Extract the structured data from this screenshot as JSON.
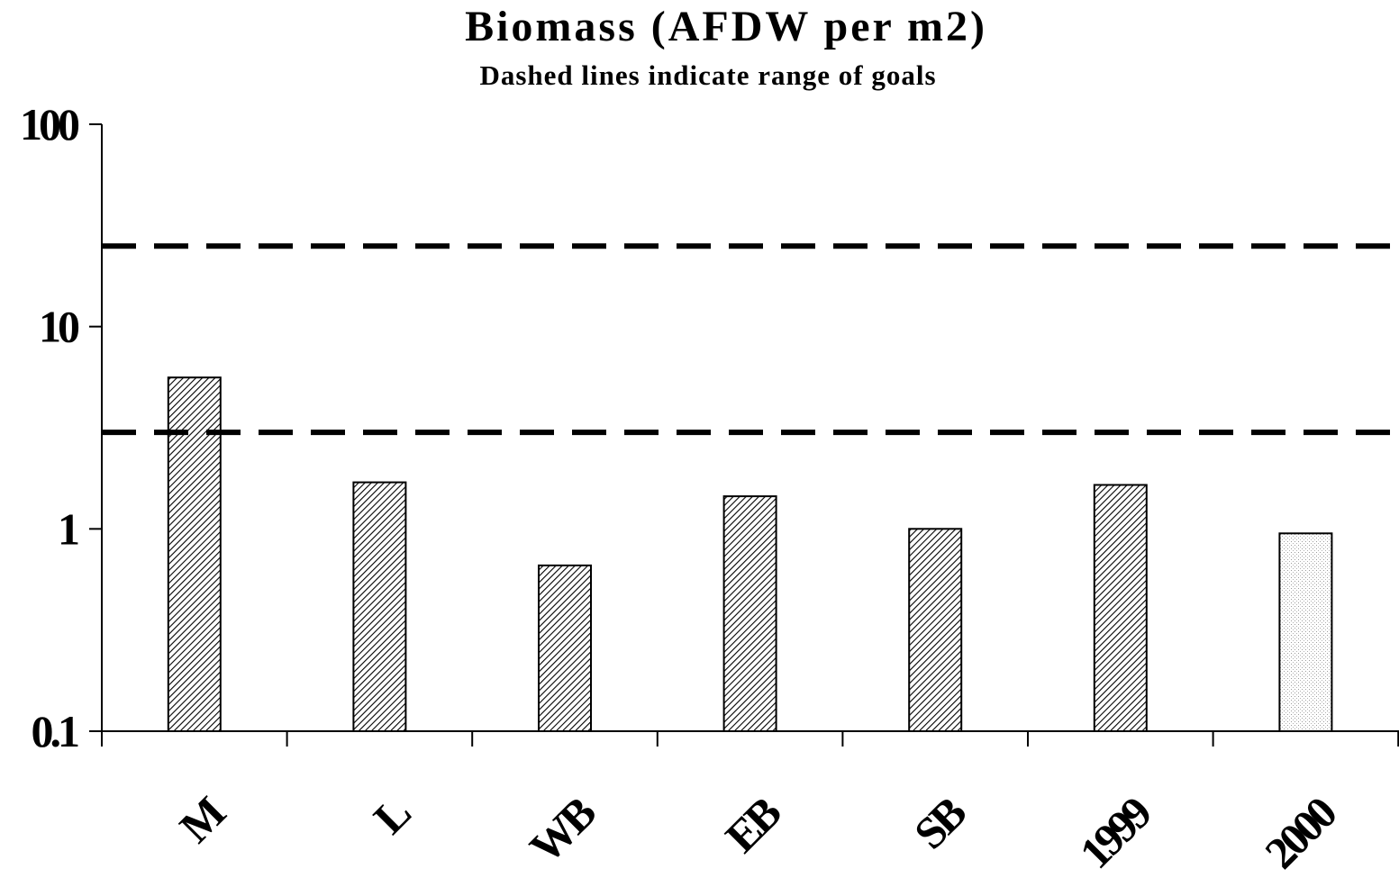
{
  "chart_data": {
    "type": "bar",
    "title": "Biomass (AFDW per m2)",
    "subtitle": "Dashed lines indicate range of goals",
    "xlabel": "",
    "ylabel": "",
    "yscale": "log",
    "ylim": [
      0.1,
      100
    ],
    "yticks": [
      {
        "value": 100,
        "label": "100"
      },
      {
        "value": 10,
        "label": "10"
      },
      {
        "value": 1,
        "label": "1"
      },
      {
        "value": 0.1,
        "label": "0.1"
      }
    ],
    "categories": [
      "M",
      "L",
      "WB",
      "EB",
      "SB",
      "1999",
      "2000"
    ],
    "values": [
      5.6,
      1.7,
      0.66,
      1.45,
      1.0,
      1.65,
      0.95
    ],
    "bar_patterns": [
      "hatch",
      "hatch",
      "hatch",
      "hatch",
      "hatch",
      "hatch",
      "dots"
    ],
    "reference_lines": [
      {
        "value": 25,
        "style": "dashed"
      },
      {
        "value": 3,
        "style": "dashed"
      }
    ],
    "grid": false,
    "legend": "none"
  }
}
